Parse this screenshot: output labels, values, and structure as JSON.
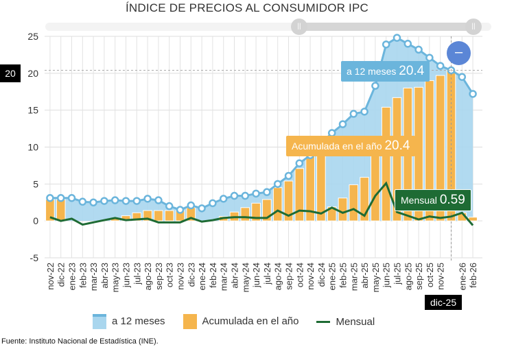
{
  "chart_data": {
    "type": "bar+line",
    "title": "ÍNDICE DE PRECIOS AL CONSUMIDOR IPC",
    "categories": [
      "nov-22",
      "dic-22",
      "ene-23",
      "feb-23",
      "mar-23",
      "abr-23",
      "may-23",
      "jun-23",
      "jul-23",
      "ago-23",
      "sep-23",
      "oct-23",
      "nov-23",
      "dic-23",
      "ene-24",
      "feb-24",
      "mar-24",
      "abr-24",
      "may-24",
      "jun-24",
      "jul-24",
      "ago-24",
      "sep-24",
      "oct-24",
      "nov-24",
      "dic-24",
      "ene-25",
      "feb-25",
      "mar-25",
      "abr-25",
      "may-25",
      "jun-25",
      "jul-25",
      "ago-25",
      "sep-25",
      "oct-25",
      "nov-25",
      "dic-25",
      "ene-26",
      "feb-26"
    ],
    "ylim": [
      -5,
      25
    ],
    "yticks": [
      "-5",
      "0",
      "5",
      "10",
      "15",
      "20",
      "25"
    ],
    "yticks_values": [
      -5,
      0,
      5,
      10,
      15,
      20,
      25
    ],
    "grid": true,
    "legend_placement": "bottom",
    "series": [
      {
        "name": "a 12 meses",
        "type": "area",
        "color": "#6bb5dc",
        "values": [
          3.1,
          3.1,
          3.1,
          2.6,
          2.5,
          2.7,
          2.8,
          2.7,
          2.7,
          3.0,
          2.8,
          2.0,
          1.5,
          2.1,
          1.7,
          2.4,
          3.0,
          3.4,
          3.4,
          3.7,
          3.9,
          5.0,
          6.1,
          7.8,
          8.9,
          10.5,
          11.9,
          13.1,
          14.5,
          14.8,
          18.3,
          23.9,
          24.8,
          24.0,
          23.2,
          22.1,
          21.0,
          20.4,
          19.5,
          17.2
        ]
      },
      {
        "name": "Acumulada en el año",
        "type": "bar",
        "color": "#f5b54d",
        "values": [
          2.9,
          2.9,
          0,
          0,
          0,
          0,
          0.3,
          0.7,
          1.1,
          1.4,
          1.4,
          1.4,
          1.4,
          1.8,
          0,
          0,
          0.6,
          1.2,
          1.8,
          2.4,
          2.9,
          4.5,
          5.4,
          7.1,
          8.8,
          10.0,
          1.9,
          3.1,
          4.9,
          5.9,
          9.0,
          15.4,
          16.7,
          18.0,
          18.1,
          19.0,
          19.7,
          20.4,
          1.1,
          0.5
        ]
      },
      {
        "name": "Mensual",
        "type": "line",
        "color": "#1e6b34",
        "values": [
          0.5,
          0.0,
          0.3,
          -0.5,
          -0.2,
          0.1,
          0.4,
          0.1,
          0.2,
          0.3,
          -0.2,
          -0.2,
          -0.2,
          0.4,
          -0.1,
          0.1,
          0.4,
          0.5,
          0.5,
          0.4,
          0.4,
          1.4,
          0.7,
          1.4,
          1.3,
          1.0,
          1.8,
          1.1,
          1.6,
          0.7,
          3.4,
          5.1,
          1.2,
          0.7,
          0.2,
          0.6,
          0.4,
          0.59,
          1.1,
          -0.6
        ]
      }
    ],
    "crosshair": {
      "category": "dic-25",
      "y_value": "20"
    }
  },
  "tooltips": {
    "a12_label": "a 12 meses",
    "a12_value": "20.4",
    "acum_label": "Acumulada en el año",
    "acum_value": "20.4",
    "mensual_label": "Mensual",
    "mensual_value": "0.59",
    "x_label": "dic-25",
    "y_label": "20"
  },
  "controls": {
    "zoom_out": "–",
    "handle_glyph": "||"
  },
  "legend": [
    "a 12 meses",
    "Acumulada en el año",
    "Mensual"
  ],
  "source": "Fuente: Instituto Nacional de Estadística (INE)."
}
